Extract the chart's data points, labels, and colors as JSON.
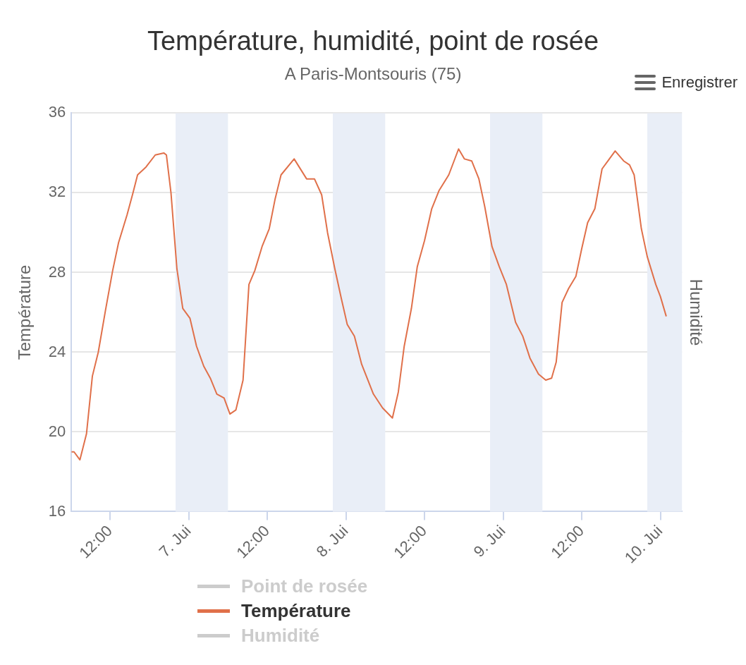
{
  "chart_data": {
    "type": "line",
    "title": "Température, humidité, point de rosée",
    "subtitle": "A Paris-Montsouris (75)",
    "ylabel": "Température",
    "y2label": "Humidité",
    "annotations": [
      "Enregistrer"
    ],
    "x": [
      "--06-06T06:06",
      "--06-06T06:30",
      "--06-06T07:24",
      "--06-06T08:24",
      "--06-06T09:18",
      "--06-06T10:12",
      "--06-06T11:18",
      "--06-06T12:24",
      "--06-06T13:18",
      "--06-06T14:36",
      "--06-06T15:30",
      "--06-06T16:12",
      "--06-06T17:30",
      "--06-06T18:54",
      "--06-06T20:12",
      "--06-06T20:36",
      "--06-06T21:18",
      "--06-06T22:12",
      "--06-06T23:06",
      "--06-07T00:12",
      "--06-07T01:12",
      "--06-07T02:18",
      "--06-07T03:18",
      "--06-07T04:18",
      "--06-07T05:24",
      "--06-07T06:18",
      "--06-07T07:12",
      "--06-07T08:18",
      "--06-07T09:12",
      "--06-07T10:06",
      "--06-07T11:12",
      "--06-07T12:18",
      "--06-07T13:12",
      "--06-07T14:06",
      "--06-07T16:06",
      "--06-07T18:00",
      "--06-07T19:12",
      "--06-07T20:18",
      "--06-07T21:12",
      "--06-07T22:18",
      "--06-07T23:18",
      "--06-08T00:12",
      "--06-08T01:18",
      "--06-08T02:24",
      "--06-08T04:12",
      "--06-08T05:36",
      "--06-08T07:06",
      "--06-08T08:00",
      "--06-08T08:54",
      "--06-08T10:00",
      "--06-08T10:54",
      "--06-08T12:00",
      "--06-08T13:06",
      "--06-08T14:12",
      "--06-08T15:42",
      "--06-08T17:12",
      "--06-08T18:06",
      "--06-08T19:12",
      "--06-08T20:18",
      "--06-08T21:12",
      "--06-08T22:18",
      "--06-08T23:24",
      "--06-09T00:30",
      "--06-09T01:54",
      "--06-09T03:00",
      "--06-09T04:06",
      "--06-09T05:24",
      "--06-09T06:30",
      "--06-09T07:24",
      "--06-09T08:06",
      "--06-09T09:00",
      "--06-09T10:00",
      "--06-09T11:06",
      "--06-09T12:00",
      "--06-09T12:54",
      "--06-09T14:00",
      "--06-09T15:06",
      "--06-09T16:00",
      "--06-09T17:06",
      "--06-09T18:24",
      "--06-09T19:18",
      "--06-09T20:00",
      "--06-09T21:06",
      "--06-09T22:00",
      "--06-09T23:18",
      "--06-10T00:00",
      "--06-10T00:54"
    ],
    "series": [
      {
        "name": "Point de rosée",
        "color": "#cccccc",
        "values": [
          null,
          null,
          null,
          null,
          null,
          null,
          null,
          null,
          null,
          null,
          null,
          null,
          null,
          null,
          null,
          null,
          null,
          null,
          null,
          null,
          null,
          null,
          null,
          null,
          null,
          null,
          null,
          null,
          null,
          null,
          null,
          null,
          null,
          null,
          null,
          null,
          null,
          null,
          null,
          null,
          null,
          null,
          null,
          null,
          null,
          null,
          null,
          null,
          null,
          null,
          null,
          null,
          null,
          null,
          null,
          null,
          null,
          null,
          null,
          null,
          null,
          null,
          null,
          null,
          null,
          null,
          null,
          null,
          null,
          null,
          null,
          null,
          null,
          null,
          null,
          null,
          null,
          null,
          null,
          null,
          null,
          null,
          null,
          null,
          null,
          null,
          null
        ]
      },
      {
        "name": "Température",
        "color": "#e0704a",
        "values": [
          19.0,
          19.0,
          18.6,
          19.9,
          22.8,
          24.0,
          26.1,
          28.1,
          29.5,
          30.9,
          32.0,
          32.9,
          33.3,
          33.9,
          34.0,
          33.9,
          32.0,
          28.2,
          26.2,
          25.7,
          24.3,
          23.3,
          22.7,
          21.9,
          21.7,
          20.9,
          21.1,
          22.6,
          27.4,
          28.1,
          29.3,
          30.2,
          31.7,
          32.9,
          33.7,
          32.7,
          32.7,
          31.9,
          30.0,
          28.2,
          26.7,
          25.4,
          24.8,
          23.4,
          21.9,
          21.2,
          20.7,
          22.0,
          24.3,
          26.2,
          28.3,
          29.6,
          31.2,
          32.1,
          32.9,
          34.2,
          33.7,
          33.6,
          32.7,
          31.3,
          29.3,
          28.3,
          27.4,
          25.5,
          24.8,
          23.7,
          22.9,
          22.6,
          22.7,
          23.5,
          26.5,
          27.2,
          27.8,
          29.2,
          30.5,
          31.2,
          33.2,
          33.6,
          34.1,
          33.6,
          33.4,
          32.9,
          30.2,
          28.8,
          27.4,
          26.8,
          25.8
        ]
      },
      {
        "name": "Humidité",
        "color": "#cccccc",
        "values": [
          null,
          null,
          null,
          null,
          null,
          null,
          null,
          null,
          null,
          null,
          null,
          null,
          null,
          null,
          null,
          null,
          null,
          null,
          null,
          null,
          null,
          null,
          null,
          null,
          null,
          null,
          null,
          null,
          null,
          null,
          null,
          null,
          null,
          null,
          null,
          null,
          null,
          null,
          null,
          null,
          null,
          null,
          null,
          null,
          null,
          null,
          null,
          null,
          null,
          null,
          null,
          null,
          null,
          null,
          null,
          null,
          null,
          null,
          null,
          null,
          null,
          null,
          null,
          null,
          null,
          null,
          null,
          null,
          null,
          null,
          null,
          null,
          null,
          null,
          null,
          null,
          null,
          null,
          null,
          null,
          null,
          null,
          null,
          null,
          null,
          null,
          null
        ]
      }
    ],
    "xlim": [
      "--06-06T06:06",
      "--06-10T03:18"
    ],
    "xticks": [
      {
        "value": "--06-06T12:00",
        "label": "12:00"
      },
      {
        "value": "--06-07T00:00",
        "label": "7. Jui"
      },
      {
        "value": "--06-07T12:00",
        "label": "12:00"
      },
      {
        "value": "--06-08T00:00",
        "label": "8. Jui"
      },
      {
        "value": "--06-08T12:00",
        "label": "12:00"
      },
      {
        "value": "--06-09T00:00",
        "label": "9. Jui"
      },
      {
        "value": "--06-09T12:00",
        "label": "12:00"
      },
      {
        "value": "--06-10T00:00",
        "label": "10. Jui"
      }
    ],
    "ylim": [
      16,
      36
    ],
    "yticks": [
      16,
      20,
      24,
      28,
      32,
      36
    ],
    "bands": [
      {
        "axis": "x",
        "from": "--06-06T22:00",
        "to": "--06-07T06:00",
        "color": "#e9eef7"
      },
      {
        "axis": "x",
        "from": "--06-07T22:00",
        "to": "--06-08T06:00",
        "color": "#e9eef7"
      },
      {
        "axis": "x",
        "from": "--06-08T22:00",
        "to": "--06-09T06:00",
        "color": "#e9eef7"
      },
      {
        "axis": "x",
        "from": "--06-09T22:00",
        "to": "--06-10T03:18",
        "color": "#e9eef7"
      }
    ],
    "grid": "y",
    "legend": "bottom",
    "marker": "none",
    "line_style": "solid"
  }
}
